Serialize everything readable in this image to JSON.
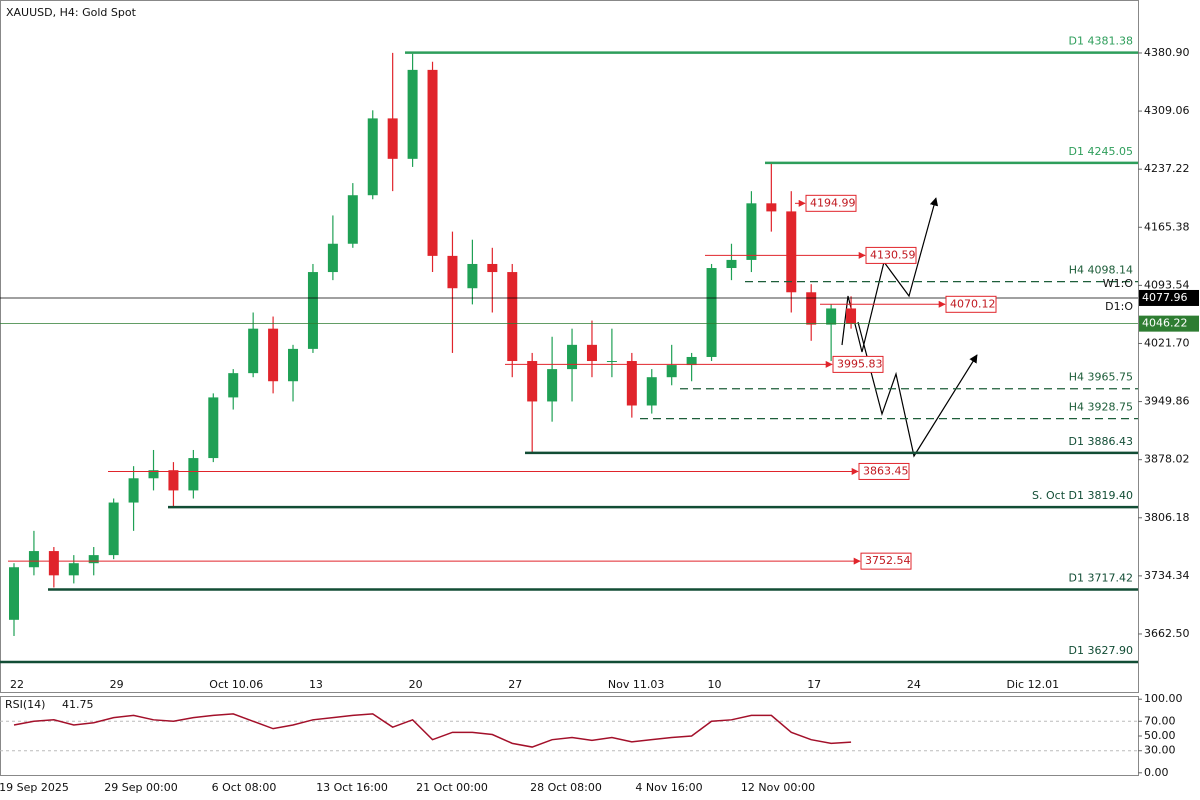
{
  "chart_data": [
    {
      "type": "candlestick",
      "title": "XAUUSD, H4:  Gold Spot",
      "categories": [
        "22",
        null,
        null,
        null,
        null,
        "29",
        null,
        null,
        null,
        null,
        "Oct 10.06",
        null,
        null,
        null,
        null,
        "13",
        null,
        null,
        null,
        null,
        "20",
        null,
        null,
        null,
        null,
        "27",
        null,
        null,
        null,
        null,
        "Nov 11.03",
        null,
        null,
        null,
        null,
        "10",
        null,
        null,
        null,
        null,
        "17",
        null,
        null,
        null,
        null,
        "24",
        null,
        null,
        null,
        null,
        "Dic 12.01",
        null,
        null,
        null,
        null
      ],
      "series": [
        {
          "up_color": "#1fa055",
          "down_color": "#e0242b",
          "open": [
            3680,
            3745,
            3765,
            3735,
            3750,
            3760,
            3825,
            3855,
            3865,
            3840,
            3880,
            3955,
            3985,
            4040,
            3975,
            4015,
            4110,
            4145,
            4205,
            4300,
            4250,
            4360,
            4130,
            4090,
            4120,
            4110,
            4000,
            3950,
            3990,
            4020,
            4000,
            4000,
            3945,
            3980,
            3995,
            4005,
            4115,
            4125,
            4195,
            4185,
            4085,
            4045,
            4065
          ],
          "high": [
            3750,
            3790,
            3770,
            3760,
            3770,
            3830,
            3870,
            3890,
            3875,
            3890,
            3960,
            3990,
            4060,
            4055,
            4020,
            4120,
            4180,
            4220,
            4310,
            4381,
            4380,
            4370,
            4160,
            4150,
            4140,
            4120,
            4010,
            4030,
            4040,
            4050,
            4040,
            4010,
            3990,
            4020,
            4010,
            4120,
            4145,
            4210,
            4245,
            4210,
            4095,
            4070,
            4080
          ],
          "low": [
            3660,
            3735,
            3720,
            3725,
            3735,
            3755,
            3790,
            3840,
            3820,
            3830,
            3875,
            3940,
            3980,
            3960,
            3950,
            4010,
            4100,
            4140,
            4200,
            4210,
            4240,
            4110,
            4010,
            4070,
            4060,
            3980,
            3886,
            3925,
            3950,
            3980,
            3980,
            3930,
            3935,
            3970,
            3975,
            4000,
            4100,
            4110,
            4160,
            4060,
            4025,
            4000,
            4040
          ],
          "close": [
            3745,
            3765,
            3735,
            3750,
            3760,
            3825,
            3855,
            3865,
            3840,
            3880,
            3955,
            3985,
            4040,
            3975,
            4015,
            4110,
            4145,
            4205,
            4300,
            4250,
            4360,
            4130,
            4090,
            4120,
            4110,
            4000,
            3950,
            3990,
            4020,
            4000,
            4000,
            3945,
            3980,
            3995,
            4005,
            4115,
            4125,
            4195,
            4185,
            4085,
            4045,
            4065,
            4046.22
          ]
        }
      ],
      "ylim": [
        3589.5,
        4446.4
      ],
      "yticks": [
        {
          "value": 4380.9,
          "label": "4380.90"
        },
        4309.06,
        4237.22,
        4165.38,
        4093.54,
        {
          "value": 4021.7,
          "label": "4021.70"
        },
        3949.86,
        3878.02,
        3806.18,
        3734.34,
        {
          "value": 3662.5,
          "label": "3662.50"
        }
      ],
      "grid": false,
      "levels": [
        {
          "label": "D1 4381.38",
          "value": 4381.38,
          "color": "#2e9e5b",
          "style": "solid"
        },
        {
          "label": "D1 4245.05",
          "value": 4245.05,
          "color": "#2e9e5b",
          "style": "solid"
        },
        {
          "label": "H4 4098.14",
          "value": 4098.14,
          "color": "#1e5e3a",
          "style": "dashed"
        },
        {
          "label": "H4 3965.75",
          "value": 3965.75,
          "color": "#1e5e3a",
          "style": "dashed"
        },
        {
          "label": "H4 3928.75",
          "value": 3928.75,
          "color": "#1e5e3a",
          "style": "dashed"
        },
        {
          "label": "D1 3886.43",
          "value": 3886.43,
          "color": "#124d35",
          "style": "solid"
        },
        {
          "label": "S. Oct D1 3819.40",
          "value": 3819.4,
          "color": "#124d35",
          "style": "solid"
        },
        {
          "label": "D1 3717.42",
          "value": 3717.42,
          "color": "#124d35",
          "style": "solid"
        },
        {
          "label": "D1 3627.90",
          "value": 3627.9,
          "color": "#124d35",
          "style": "solid"
        }
      ],
      "annotations": [
        "W1:O",
        "D1:O"
      ],
      "price_tags": [
        {
          "value": 4077.96,
          "color": "#000000"
        },
        {
          "value": 4046.22,
          "color": "#2e7d32"
        }
      ],
      "targets": {
        "color": "#e0242b",
        "values": [
          4194.99,
          4130.59,
          4070.12,
          3995.83,
          3863.45,
          3752.54
        ]
      },
      "time_labels": [
        "19 Sep 2025",
        "29 Sep 00:00",
        "6 Oct 08:00",
        "13 Oct 16:00",
        "21 Oct 00:00",
        "28 Oct 08:00",
        "4 Nov 16:00",
        "12 Nov 00:00"
      ]
    },
    {
      "type": "line",
      "title": "RSI(14)",
      "last_value": 41.75,
      "color": "#a3102a",
      "values": [
        65,
        70,
        72,
        65,
        68,
        75,
        78,
        72,
        70,
        75,
        78,
        80,
        70,
        60,
        65,
        72,
        75,
        78,
        80,
        62,
        72,
        45,
        55,
        55,
        52,
        40,
        35,
        45,
        48,
        44,
        48,
        42,
        45,
        48,
        50,
        70,
        72,
        78,
        78,
        55,
        45,
        40,
        41.75
      ],
      "ylim": [
        -3,
        103
      ],
      "yticks": [
        {
          "value": 100,
          "label": "100.00"
        },
        {
          "value": 70,
          "label": "70.00"
        },
        {
          "value": 50,
          "label": "50.00"
        },
        {
          "value": 30,
          "label": "30.00"
        },
        {
          "value": 0,
          "label": "0.00"
        }
      ]
    }
  ]
}
